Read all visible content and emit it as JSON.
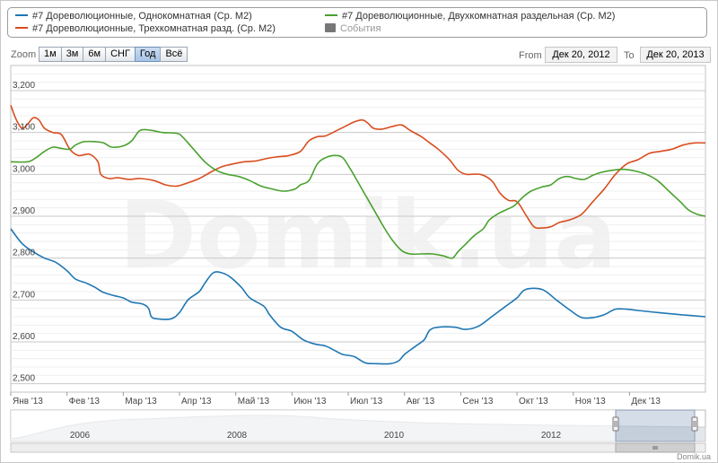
{
  "legend": {
    "items": [
      {
        "label": "#7 Дореволюционные, Однокомнатная (Ср. М2)",
        "color": "#1f77b4"
      },
      {
        "label": "#7 Дореволюционные, Трехкомнатная разд. (Ср. М2)",
        "color": "#d94e1f"
      },
      {
        "label": "#7 Дореволюционные, Двухкомнатная раздельная (Ср. М2)",
        "color": "#4aa12f"
      },
      {
        "label": "События",
        "color": "#777777"
      }
    ]
  },
  "zoom": {
    "label": "Zoom",
    "buttons": [
      "1м",
      "3м",
      "6м",
      "СНГ",
      "Год",
      "Всё"
    ],
    "active": "Год"
  },
  "range": {
    "from_label": "From",
    "from_value": "Дек 20, 2012",
    "to_label": "To",
    "to_value": "Дек 20, 2013"
  },
  "watermark": "Domik.ua",
  "credit": "Domik.ua",
  "chart_data": {
    "type": "line",
    "x_tick_labels": [
      "Янв '13",
      "Фев '13",
      "Мар '13",
      "Апр '13",
      "Май '13",
      "Июн '13",
      "Июл '13",
      "Авг '13",
      "Сен '13",
      "Окт '13",
      "Ноя '13",
      "Дек '13"
    ],
    "y_tick_labels": [
      "2,500",
      "2,600",
      "2,700",
      "2,800",
      "2,900",
      "3,000",
      "3,100",
      "3,200"
    ],
    "ylim": [
      2480,
      3260
    ],
    "xlim": [
      0,
      12.35
    ],
    "grid": true,
    "legend_position": "top",
    "series": [
      {
        "name": "#7 Дореволюционные, Однокомнатная (Ср. М2)",
        "color": "#1f77b4",
        "points": [
          [
            0,
            2870
          ],
          [
            0.2,
            2835
          ],
          [
            0.4,
            2815
          ],
          [
            0.6,
            2800
          ],
          [
            0.8,
            2790
          ],
          [
            1.0,
            2770
          ],
          [
            1.15,
            2750
          ],
          [
            1.35,
            2740
          ],
          [
            1.5,
            2730
          ],
          [
            1.65,
            2718
          ],
          [
            1.85,
            2710
          ],
          [
            2.0,
            2705
          ],
          [
            2.15,
            2695
          ],
          [
            2.35,
            2690
          ],
          [
            2.45,
            2680
          ],
          [
            2.5,
            2660
          ],
          [
            2.6,
            2655
          ],
          [
            2.85,
            2655
          ],
          [
            3.0,
            2670
          ],
          [
            3.15,
            2700
          ],
          [
            3.35,
            2720
          ],
          [
            3.45,
            2740
          ],
          [
            3.6,
            2765
          ],
          [
            3.75,
            2765
          ],
          [
            3.9,
            2755
          ],
          [
            4.1,
            2730
          ],
          [
            4.25,
            2705
          ],
          [
            4.5,
            2685
          ],
          [
            4.6,
            2665
          ],
          [
            4.8,
            2635
          ],
          [
            5.0,
            2625
          ],
          [
            5.2,
            2605
          ],
          [
            5.4,
            2595
          ],
          [
            5.6,
            2590
          ],
          [
            5.75,
            2580
          ],
          [
            5.9,
            2570
          ],
          [
            6.1,
            2565
          ],
          [
            6.3,
            2550
          ],
          [
            6.5,
            2548
          ],
          [
            6.75,
            2548
          ],
          [
            6.9,
            2555
          ],
          [
            7.0,
            2570
          ],
          [
            7.2,
            2590
          ],
          [
            7.35,
            2605
          ],
          [
            7.45,
            2628
          ],
          [
            7.6,
            2635
          ],
          [
            7.9,
            2635
          ],
          [
            8.05,
            2630
          ],
          [
            8.2,
            2632
          ],
          [
            8.35,
            2640
          ],
          [
            8.55,
            2660
          ],
          [
            8.8,
            2685
          ],
          [
            9.0,
            2705
          ],
          [
            9.15,
            2725
          ],
          [
            9.45,
            2725
          ],
          [
            9.7,
            2700
          ],
          [
            9.95,
            2675
          ],
          [
            10.15,
            2658
          ],
          [
            10.35,
            2658
          ],
          [
            10.55,
            2665
          ],
          [
            10.75,
            2678
          ],
          [
            10.95,
            2678
          ],
          [
            11.15,
            2675
          ],
          [
            11.5,
            2670
          ],
          [
            11.9,
            2665
          ],
          [
            12.35,
            2660
          ]
        ]
      },
      {
        "name": "#7 Дореволюционные, Трехкомнатная разд. (Ср. М2)",
        "color": "#d94e1f",
        "points": [
          [
            0,
            3165
          ],
          [
            0.1,
            3130
          ],
          [
            0.2,
            3110
          ],
          [
            0.3,
            3120
          ],
          [
            0.4,
            3135
          ],
          [
            0.5,
            3130
          ],
          [
            0.6,
            3110
          ],
          [
            0.75,
            3100
          ],
          [
            0.9,
            3095
          ],
          [
            1.05,
            3060
          ],
          [
            1.2,
            3045
          ],
          [
            1.4,
            3048
          ],
          [
            1.55,
            3030
          ],
          [
            1.6,
            3000
          ],
          [
            1.75,
            2990
          ],
          [
            1.9,
            2992
          ],
          [
            2.1,
            2988
          ],
          [
            2.3,
            2990
          ],
          [
            2.55,
            2985
          ],
          [
            2.75,
            2975
          ],
          [
            2.95,
            2972
          ],
          [
            3.15,
            2980
          ],
          [
            3.35,
            2990
          ],
          [
            3.55,
            3005
          ],
          [
            3.75,
            3018
          ],
          [
            3.95,
            3025
          ],
          [
            4.15,
            3030
          ],
          [
            4.35,
            3032
          ],
          [
            4.55,
            3038
          ],
          [
            4.75,
            3042
          ],
          [
            4.95,
            3045
          ],
          [
            5.15,
            3055
          ],
          [
            5.3,
            3080
          ],
          [
            5.45,
            3090
          ],
          [
            5.6,
            3092
          ],
          [
            5.8,
            3105
          ],
          [
            5.95,
            3115
          ],
          [
            6.1,
            3125
          ],
          [
            6.25,
            3130
          ],
          [
            6.35,
            3122
          ],
          [
            6.45,
            3110
          ],
          [
            6.6,
            3108
          ],
          [
            6.8,
            3115
          ],
          [
            6.95,
            3118
          ],
          [
            7.1,
            3105
          ],
          [
            7.3,
            3090
          ],
          [
            7.45,
            3075
          ],
          [
            7.6,
            3060
          ],
          [
            7.8,
            3035
          ],
          [
            7.95,
            3010
          ],
          [
            8.1,
            3000
          ],
          [
            8.35,
            3000
          ],
          [
            8.55,
            2985
          ],
          [
            8.7,
            2955
          ],
          [
            8.85,
            2938
          ],
          [
            9.0,
            2935
          ],
          [
            9.15,
            2905
          ],
          [
            9.3,
            2875
          ],
          [
            9.45,
            2872
          ],
          [
            9.6,
            2875
          ],
          [
            9.75,
            2885
          ],
          [
            9.95,
            2892
          ],
          [
            10.15,
            2905
          ],
          [
            10.35,
            2935
          ],
          [
            10.55,
            2965
          ],
          [
            10.75,
            3000
          ],
          [
            10.95,
            3025
          ],
          [
            11.15,
            3035
          ],
          [
            11.35,
            3050
          ],
          [
            11.55,
            3055
          ],
          [
            11.75,
            3060
          ],
          [
            11.95,
            3070
          ],
          [
            12.15,
            3075
          ],
          [
            12.35,
            3075
          ]
        ]
      },
      {
        "name": "#7 Дореволюционные, Двухкомнатная раздельная (Ср. М2)",
        "color": "#4aa12f",
        "points": [
          [
            0,
            3030
          ],
          [
            0.3,
            3030
          ],
          [
            0.45,
            3040
          ],
          [
            0.6,
            3055
          ],
          [
            0.75,
            3065
          ],
          [
            0.9,
            3062
          ],
          [
            1.05,
            3060
          ],
          [
            1.15,
            3070
          ],
          [
            1.3,
            3078
          ],
          [
            1.5,
            3078
          ],
          [
            1.65,
            3075
          ],
          [
            1.8,
            3065
          ],
          [
            2.0,
            3068
          ],
          [
            2.15,
            3080
          ],
          [
            2.3,
            3105
          ],
          [
            2.5,
            3105
          ],
          [
            2.7,
            3100
          ],
          [
            2.95,
            3098
          ],
          [
            3.05,
            3090
          ],
          [
            3.25,
            3060
          ],
          [
            3.45,
            3030
          ],
          [
            3.65,
            3010
          ],
          [
            3.85,
            3000
          ],
          [
            4.05,
            2995
          ],
          [
            4.25,
            2985
          ],
          [
            4.45,
            2972
          ],
          [
            4.65,
            2965
          ],
          [
            4.85,
            2960
          ],
          [
            5.05,
            2965
          ],
          [
            5.15,
            2975
          ],
          [
            5.3,
            2985
          ],
          [
            5.45,
            3025
          ],
          [
            5.6,
            3040
          ],
          [
            5.75,
            3045
          ],
          [
            5.9,
            3040
          ],
          [
            6.05,
            3010
          ],
          [
            6.2,
            2975
          ],
          [
            6.35,
            2940
          ],
          [
            6.5,
            2905
          ],
          [
            6.65,
            2870
          ],
          [
            6.8,
            2840
          ],
          [
            6.95,
            2818
          ],
          [
            7.1,
            2810
          ],
          [
            7.3,
            2810
          ],
          [
            7.5,
            2810
          ],
          [
            7.7,
            2805
          ],
          [
            7.85,
            2800
          ],
          [
            7.95,
            2815
          ],
          [
            8.1,
            2835
          ],
          [
            8.25,
            2855
          ],
          [
            8.4,
            2870
          ],
          [
            8.5,
            2890
          ],
          [
            8.65,
            2905
          ],
          [
            8.8,
            2915
          ],
          [
            8.95,
            2925
          ],
          [
            9.1,
            2945
          ],
          [
            9.25,
            2960
          ],
          [
            9.45,
            2970
          ],
          [
            9.6,
            2975
          ],
          [
            9.75,
            2990
          ],
          [
            9.9,
            2995
          ],
          [
            10.05,
            2990
          ],
          [
            10.2,
            2988
          ],
          [
            10.35,
            2998
          ],
          [
            10.5,
            3005
          ],
          [
            10.7,
            3010
          ],
          [
            10.9,
            3012
          ],
          [
            11.1,
            3008
          ],
          [
            11.3,
            3000
          ],
          [
            11.5,
            2985
          ],
          [
            11.7,
            2960
          ],
          [
            11.9,
            2935
          ],
          [
            12.05,
            2915
          ],
          [
            12.2,
            2905
          ],
          [
            12.35,
            2900
          ]
        ]
      }
    ],
    "navigator": {
      "tick_labels": [
        "2006",
        "2008",
        "2010",
        "2012"
      ]
    }
  }
}
